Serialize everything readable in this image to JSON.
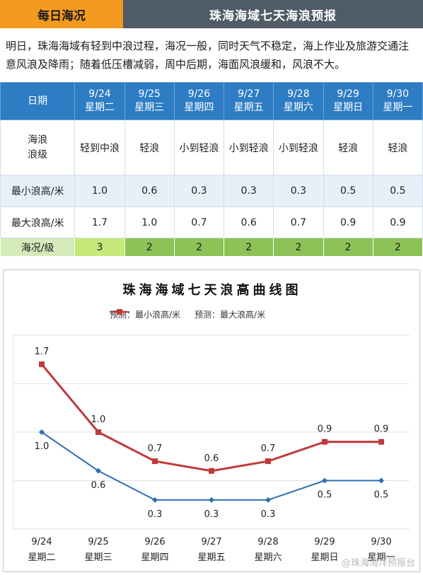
{
  "header": {
    "left_title": "每日海况",
    "right_title": "珠海海域七天海浪预报"
  },
  "summary": "明日，珠海海域有轻到中浪过程，海况一般，同时天气不稳定，海上作业及旅游交通注意风浪及降雨；随着低压槽减弱，周中后期，海面风浪缓和，风浪不大。",
  "table": {
    "date_label": "日期",
    "level_label_1": "海浪",
    "level_label_2": "浪级",
    "min_label": "最小浪高/米",
    "max_label": "最大浪高/米",
    "sea_label": "海况/级",
    "days": [
      {
        "date": "9/24",
        "weekday": "星期二",
        "level": "轻到中浪",
        "min": "1.0",
        "max": "1.7",
        "sea": "3"
      },
      {
        "date": "9/25",
        "weekday": "星期三",
        "level": "轻浪",
        "min": "0.6",
        "max": "1.0",
        "sea": "2"
      },
      {
        "date": "9/26",
        "weekday": "星期四",
        "level": "小到轻浪",
        "min": "0.3",
        "max": "0.7",
        "sea": "2"
      },
      {
        "date": "9/27",
        "weekday": "星期五",
        "level": "小到轻浪",
        "min": "0.3",
        "max": "0.6",
        "sea": "2"
      },
      {
        "date": "9/28",
        "weekday": "星期六",
        "level": "小到轻浪",
        "min": "0.3",
        "max": "0.7",
        "sea": "2"
      },
      {
        "date": "9/29",
        "weekday": "星期日",
        "level": "轻浪",
        "min": "0.5",
        "max": "0.9",
        "sea": "2"
      },
      {
        "date": "9/30",
        "weekday": "星期一",
        "level": "轻浪",
        "min": "0.5",
        "max": "0.9",
        "sea": "2"
      }
    ]
  },
  "chart_data": {
    "type": "line",
    "title": "珠海海域七天浪高曲线图",
    "categories": [
      "9/24",
      "9/25",
      "9/26",
      "9/27",
      "9/28",
      "9/29",
      "9/30"
    ],
    "category_sublabels": [
      "星期二",
      "星期三",
      "星期四",
      "星期五",
      "星期六",
      "星期日",
      "星期一"
    ],
    "series": [
      {
        "name": "预测：最小浪高/米",
        "values": [
          1.0,
          0.6,
          0.3,
          0.3,
          0.3,
          0.5,
          0.5
        ],
        "color": "#2e6fb0"
      },
      {
        "name": "预测：最大浪高/米",
        "values": [
          1.7,
          1.0,
          0.7,
          0.6,
          0.7,
          0.9,
          0.9
        ],
        "color": "#c0393b"
      }
    ],
    "ylim": [
      0,
      2.0
    ],
    "grid": true,
    "legend_position": "top"
  },
  "watermark": "@珠海海洋预报台"
}
